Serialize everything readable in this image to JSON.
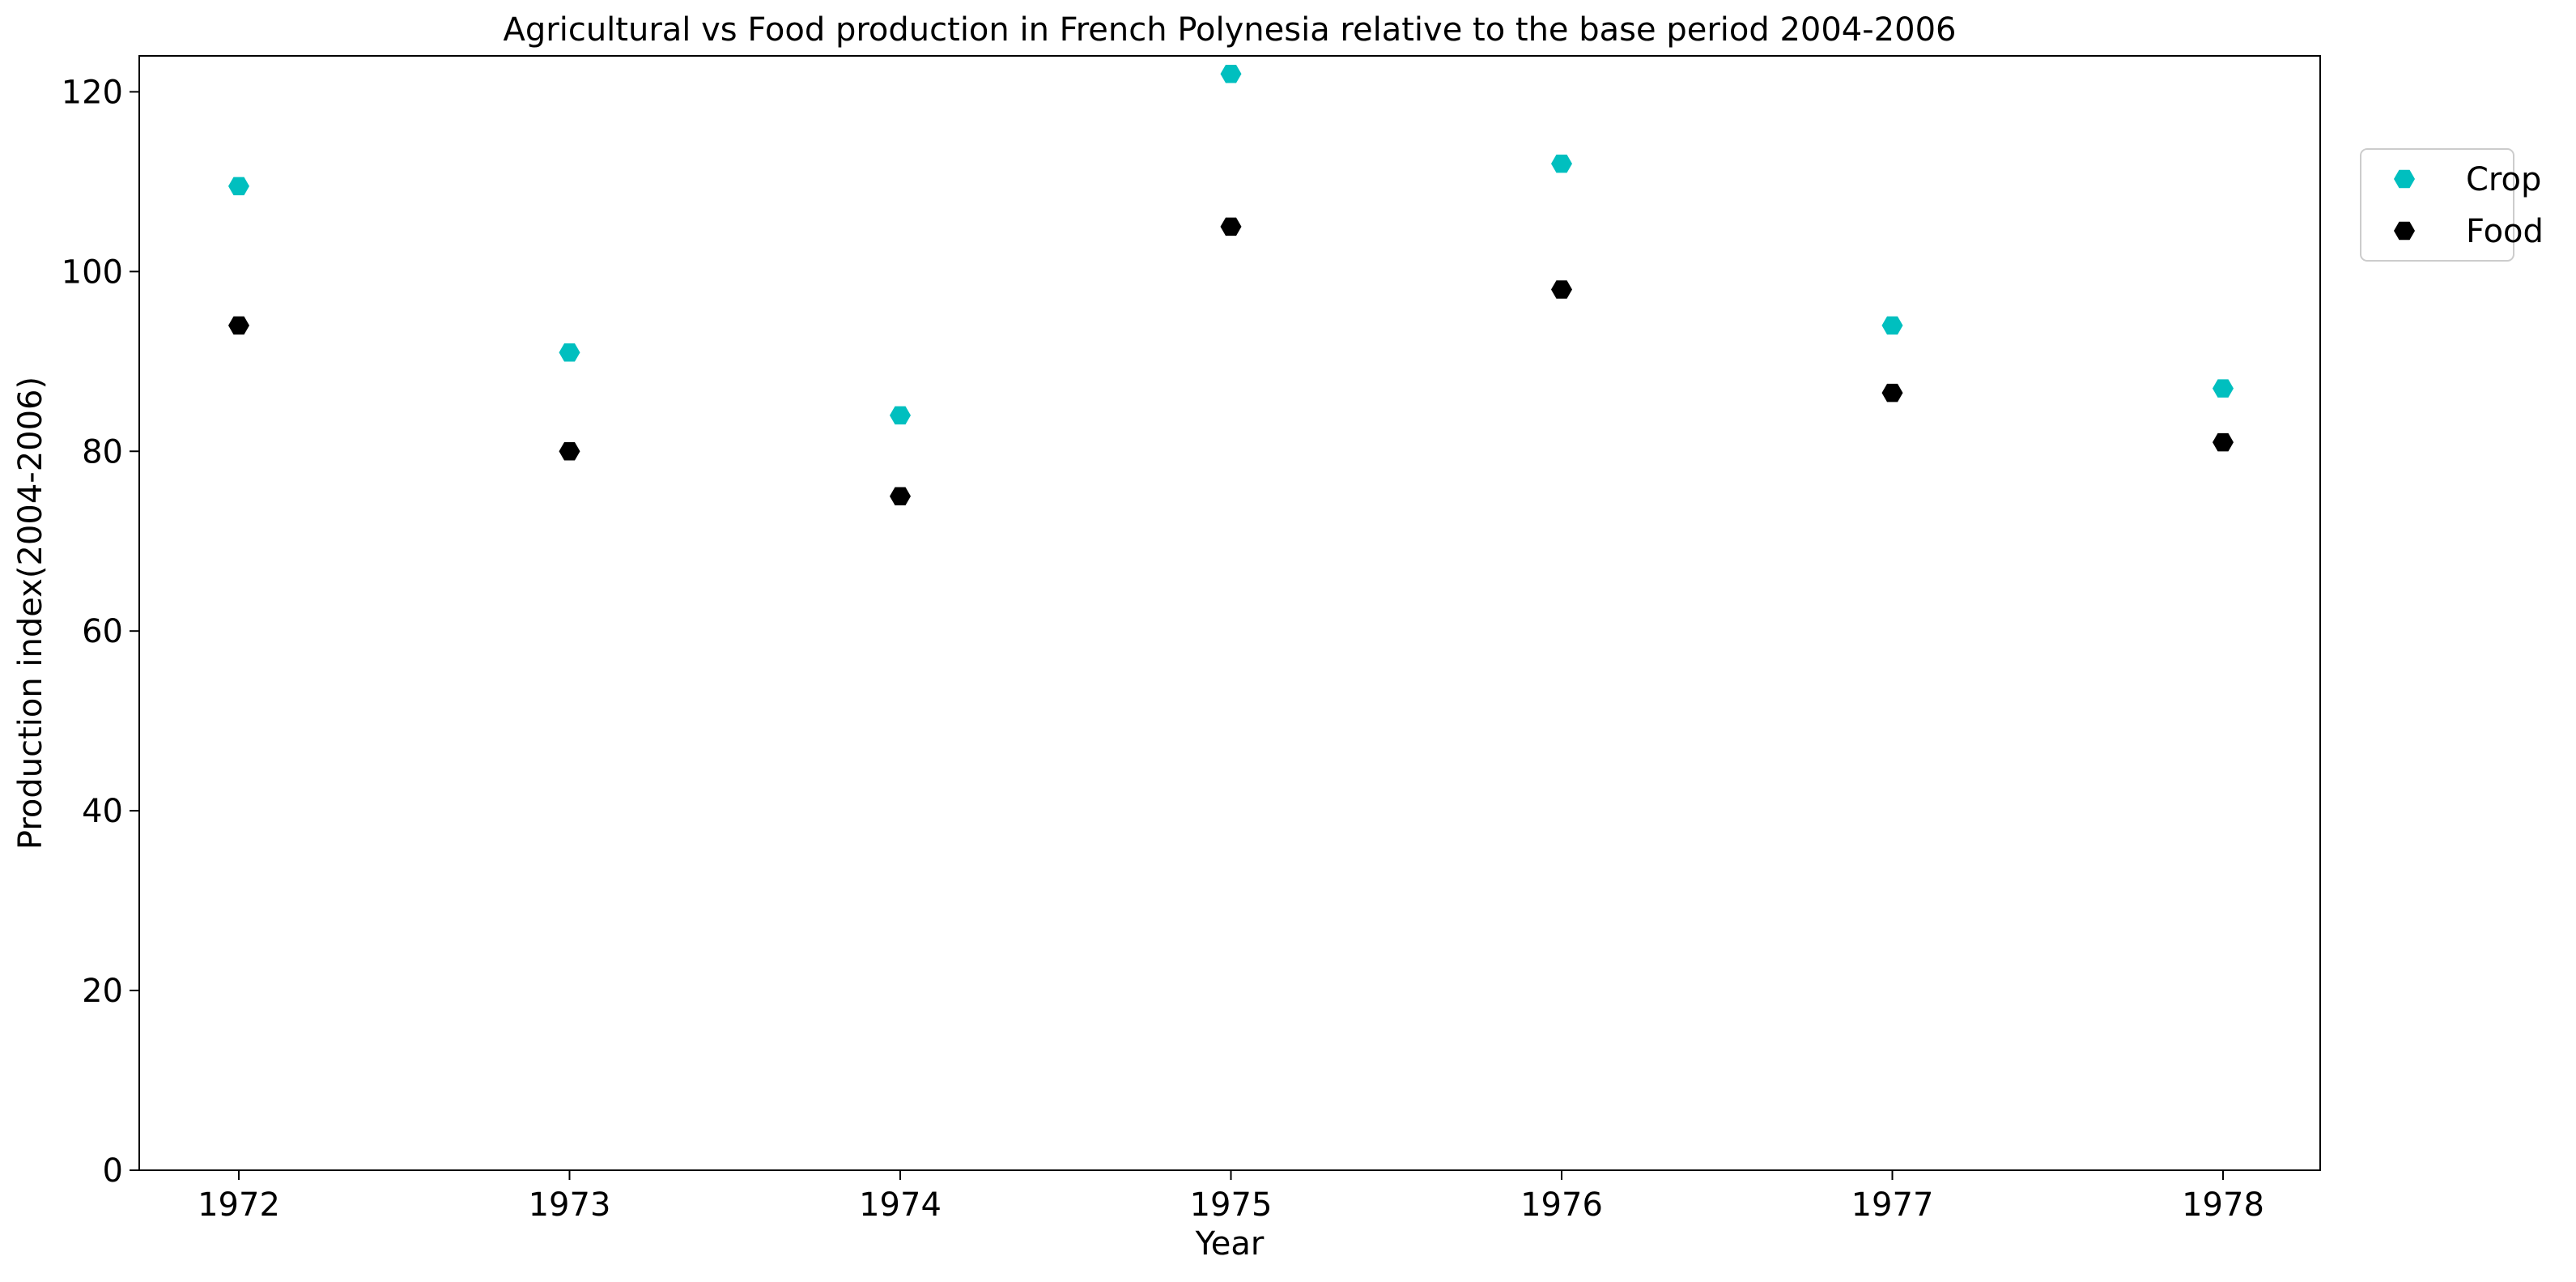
{
  "chart_data": {
    "type": "scatter",
    "title": "Agricultural vs Food production in French Polynesia relative to the base period 2004-2006",
    "xlabel": "Year",
    "ylabel": "Production index(2004-2006)",
    "categories": [
      "1972",
      "1973",
      "1974",
      "1975",
      "1976",
      "1977",
      "1978"
    ],
    "ylim": [
      0,
      124
    ],
    "yticks": [
      0,
      20,
      40,
      60,
      80,
      100,
      120
    ],
    "grid": false,
    "legend_position": "upper-right-outside",
    "marker": "hexagon",
    "series": [
      {
        "name": "Crop",
        "color": "#00BFBF",
        "values": [
          109.5,
          91,
          84,
          122,
          112,
          94,
          87
        ]
      },
      {
        "name": "Food",
        "color": "#000000",
        "values": [
          94,
          80,
          75,
          105,
          98,
          86.5,
          81
        ]
      }
    ]
  }
}
